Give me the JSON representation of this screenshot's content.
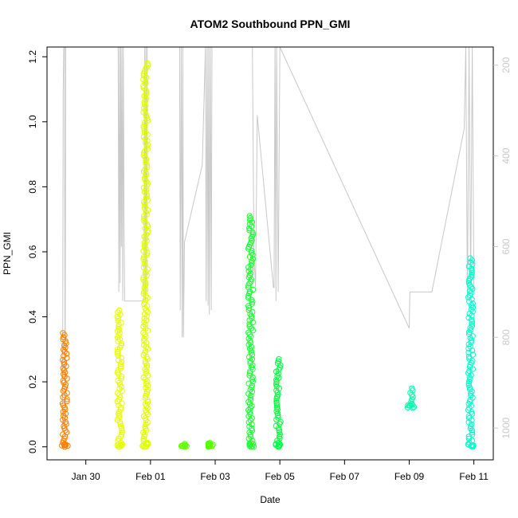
{
  "chart_data": {
    "type": "scatter",
    "title": "ATOM2 Southbound PPN_GMI",
    "xlabel": "Date",
    "ylabel": "PPN_GMI",
    "x_ticks": [
      "Jan 30",
      "Feb 01",
      "Feb 03",
      "Feb 05",
      "Feb 07",
      "Feb 09",
      "Feb 11"
    ],
    "x_tick_days": [
      1,
      3,
      5,
      7,
      9,
      11,
      13
    ],
    "xlim_days": [
      -0.2,
      13.6
    ],
    "y_ticks": [
      "0.0",
      "0.2",
      "0.4",
      "0.6",
      "0.8",
      "1.0",
      "1.2"
    ],
    "y_tick_values": [
      0.0,
      0.2,
      0.4,
      0.6,
      0.8,
      1.0,
      1.2
    ],
    "ylim": [
      -0.04,
      1.23
    ],
    "y2_ticks": [
      "200",
      "400",
      "600",
      "800",
      "1000"
    ],
    "y2_tick_values": [
      200,
      400,
      600,
      800,
      1000
    ],
    "y2lim": [
      1070,
      160
    ],
    "grid": false,
    "point_clusters": [
      {
        "day": 0.35,
        "ymin": 0.0,
        "ymax": 0.35,
        "color": "#ff8000"
      },
      {
        "day": 2.05,
        "ymin": 0.0,
        "ymax": 0.42,
        "color": "#e6ff00"
      },
      {
        "day": 2.85,
        "ymin": 0.0,
        "ymax": 1.18,
        "color": "#e0ff00"
      },
      {
        "day": 4.05,
        "ymin": 0.0,
        "ymax": 0.005,
        "color": "#66ff00"
      },
      {
        "day": 4.85,
        "ymin": 0.0,
        "ymax": 0.012,
        "color": "#55ff00"
      },
      {
        "day": 6.1,
        "ymin": 0.0,
        "ymax": 0.71,
        "color": "#1aff33"
      },
      {
        "day": 6.95,
        "ymin": 0.0,
        "ymax": 0.27,
        "color": "#00ff40"
      },
      {
        "day": 11.05,
        "ymin": 0.12,
        "ymax": 0.18,
        "color": "#00ffaa"
      },
      {
        "day": 12.9,
        "ymin": 0.0,
        "ymax": 0.58,
        "color": "#00ffcc"
      }
    ],
    "depth_track": {
      "color": "#c8c8c8",
      "points": [
        [
          0.28,
          1000
        ],
        [
          0.3,
          250
        ],
        [
          0.32,
          160
        ],
        [
          0.34,
          160
        ],
        [
          0.36,
          1000
        ],
        [
          0.38,
          160
        ],
        [
          2.0,
          160
        ],
        [
          2.02,
          700
        ],
        [
          2.04,
          160
        ],
        [
          2.06,
          680
        ],
        [
          2.08,
          160
        ],
        [
          2.1,
          600
        ],
        [
          2.12,
          160
        ],
        [
          2.14,
          720
        ],
        [
          2.16,
          160
        ],
        [
          2.18,
          530
        ],
        [
          2.2,
          720
        ],
        [
          2.8,
          720
        ],
        [
          2.82,
          160
        ],
        [
          2.84,
          720
        ],
        [
          2.86,
          160
        ],
        [
          2.88,
          700
        ],
        [
          2.9,
          160
        ],
        [
          3.9,
          160
        ],
        [
          3.92,
          740
        ],
        [
          3.95,
          160
        ],
        [
          3.98,
          800
        ],
        [
          4.0,
          160
        ],
        [
          4.02,
          800
        ],
        [
          4.05,
          590
        ],
        [
          4.6,
          420
        ],
        [
          4.7,
          160
        ],
        [
          4.72,
          720
        ],
        [
          4.75,
          160
        ],
        [
          4.78,
          730
        ],
        [
          4.8,
          160
        ],
        [
          4.82,
          750
        ],
        [
          4.85,
          160
        ],
        [
          4.88,
          740
        ],
        [
          4.9,
          160
        ],
        [
          5.6,
          160
        ],
        [
          6.0,
          160
        ],
        [
          6.02,
          160
        ],
        [
          6.15,
          160
        ],
        [
          6.2,
          620
        ],
        [
          6.25,
          690
        ],
        [
          6.3,
          310
        ],
        [
          6.8,
          690
        ],
        [
          6.82,
          690
        ],
        [
          6.85,
          160
        ],
        [
          6.88,
          720
        ],
        [
          6.9,
          160
        ],
        [
          6.95,
          700
        ],
        [
          7.0,
          160
        ],
        [
          11.0,
          780
        ],
        [
          11.02,
          700
        ],
        [
          11.7,
          700
        ],
        [
          12.7,
          340
        ],
        [
          12.75,
          160
        ],
        [
          12.8,
          720
        ],
        [
          12.85,
          160
        ],
        [
          12.9,
          690
        ],
        [
          12.95,
          160
        ],
        [
          13.0,
          700
        ]
      ]
    }
  }
}
